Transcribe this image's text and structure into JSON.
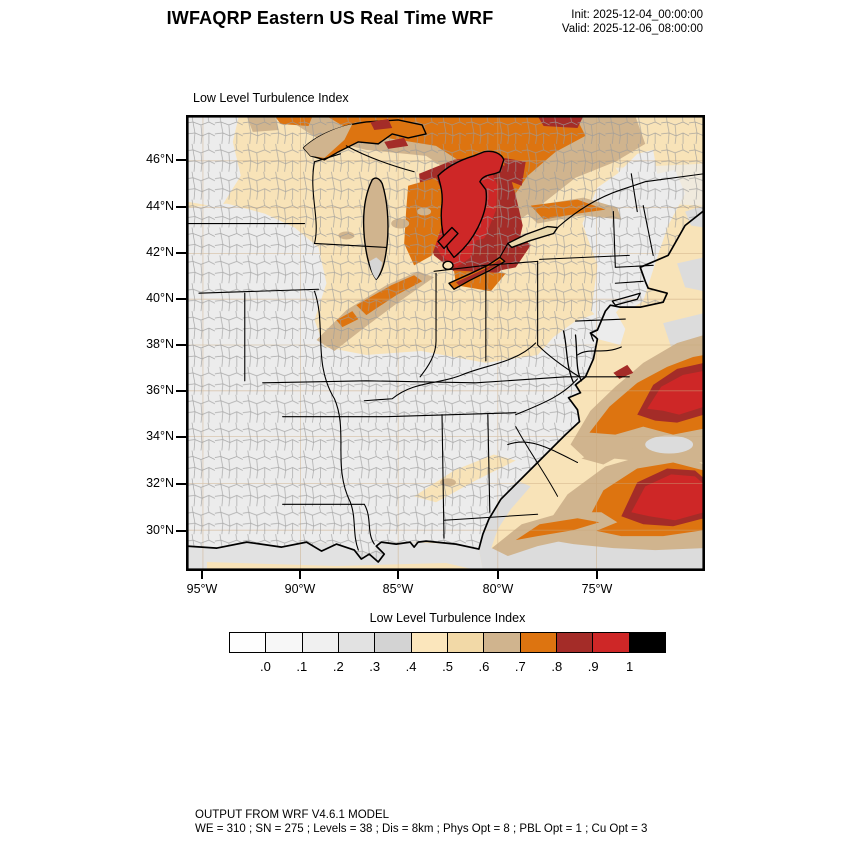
{
  "header": {
    "title": "IWFAQRP Eastern US Real Time WRF",
    "init_label": "Init: 2025-12-04_00:00:00",
    "valid_label": "Valid: 2025-12-06_08:00:00"
  },
  "map": {
    "title": "Low Level Turbulence Index",
    "lat_labels": [
      "46°N",
      "44°N",
      "42°N",
      "40°N",
      "38°N",
      "36°N",
      "34°N",
      "32°N",
      "30°N"
    ],
    "lon_labels": [
      "95°W",
      "90°W",
      "85°W",
      "80°W",
      "75°W"
    ]
  },
  "colorbar": {
    "title": "Low Level Turbulence Index",
    "tick_labels": [
      ".0",
      ".1",
      ".2",
      ".3",
      ".4",
      ".5",
      ".6",
      ".7",
      ".8",
      ".9",
      "1"
    ],
    "colors": [
      "#fefefe",
      "#f7f7f7",
      "#f0f0f0",
      "#e2e2e2",
      "#d3d3d3",
      "#fbe6bc",
      "#f2d9a7",
      "#d0b48e",
      "#dd7410",
      "#a42c28",
      "#ce2727",
      "#000000"
    ]
  },
  "palette": {
    "cream": "#f8e3b8",
    "land_gray": "#ececec",
    "ocean_gray": "#dcdcdc",
    "gulf_gray": "#e2e2e2",
    "tan": "#d0b48e",
    "orange": "#dd7410",
    "dark_red": "#a42c28",
    "red": "#ce2727",
    "county_line": "#9a9a9a",
    "graticule": "#c9a87e"
  },
  "footer": {
    "line1": "OUTPUT FROM WRF V4.6.1 MODEL",
    "line2": "WE = 310 ; SN = 275 ; Levels = 38 ; Dis = 8km ; Phys Opt = 8 ; PBL Opt = 1 ; Cu Opt = 3"
  }
}
